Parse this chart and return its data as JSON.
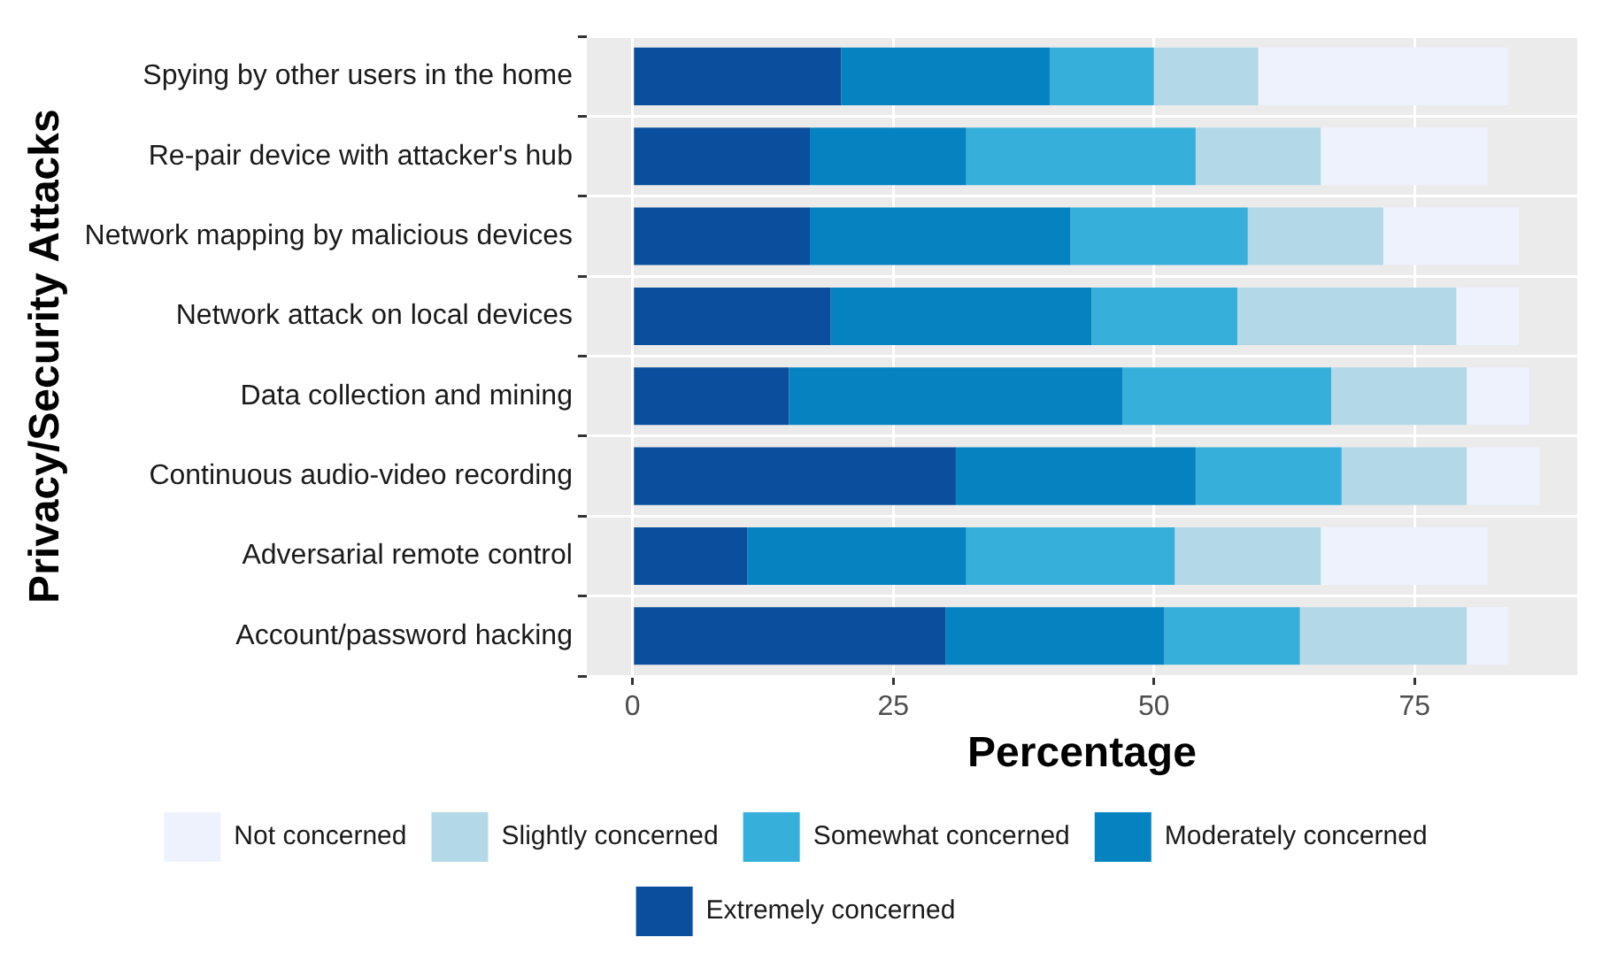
{
  "chart_data": {
    "type": "bar",
    "orientation": "horizontal",
    "stacked": true,
    "xlabel": "Percentage",
    "ylabel": "Privacy/Security Attacks",
    "categories": [
      "Spying by other users in the home",
      "Re-pair device with attacker's hub",
      "Network mapping by malicious devices",
      "Network attack on local devices",
      "Data collection and mining",
      "Continuous audio-video recording",
      "Adversarial remote control",
      "Account/password hacking"
    ],
    "series": [
      {
        "name": "Extremely concerned",
        "color": "#0a4f9e",
        "values": [
          20,
          17,
          17,
          19,
          15,
          31,
          11,
          30
        ]
      },
      {
        "name": "Moderately concerned",
        "color": "#0583c1",
        "values": [
          20,
          15,
          25,
          25,
          32,
          23,
          21,
          21
        ]
      },
      {
        "name": "Somewhat concerned",
        "color": "#36b0da",
        "values": [
          10,
          22,
          17,
          14,
          20,
          14,
          20,
          13
        ]
      },
      {
        "name": "Slightly concerned",
        "color": "#b3d9e8",
        "values": [
          10,
          12,
          13,
          21,
          13,
          12,
          14,
          16
        ]
      },
      {
        "name": "Not concerned",
        "color": "#eef2fd",
        "values": [
          24,
          16,
          13,
          6,
          6,
          7,
          16,
          4
        ]
      }
    ],
    "xlim": [
      -4.4,
      90.6
    ],
    "xticks": [
      0,
      25,
      50,
      75
    ],
    "grid": true,
    "legend": "bottom"
  }
}
